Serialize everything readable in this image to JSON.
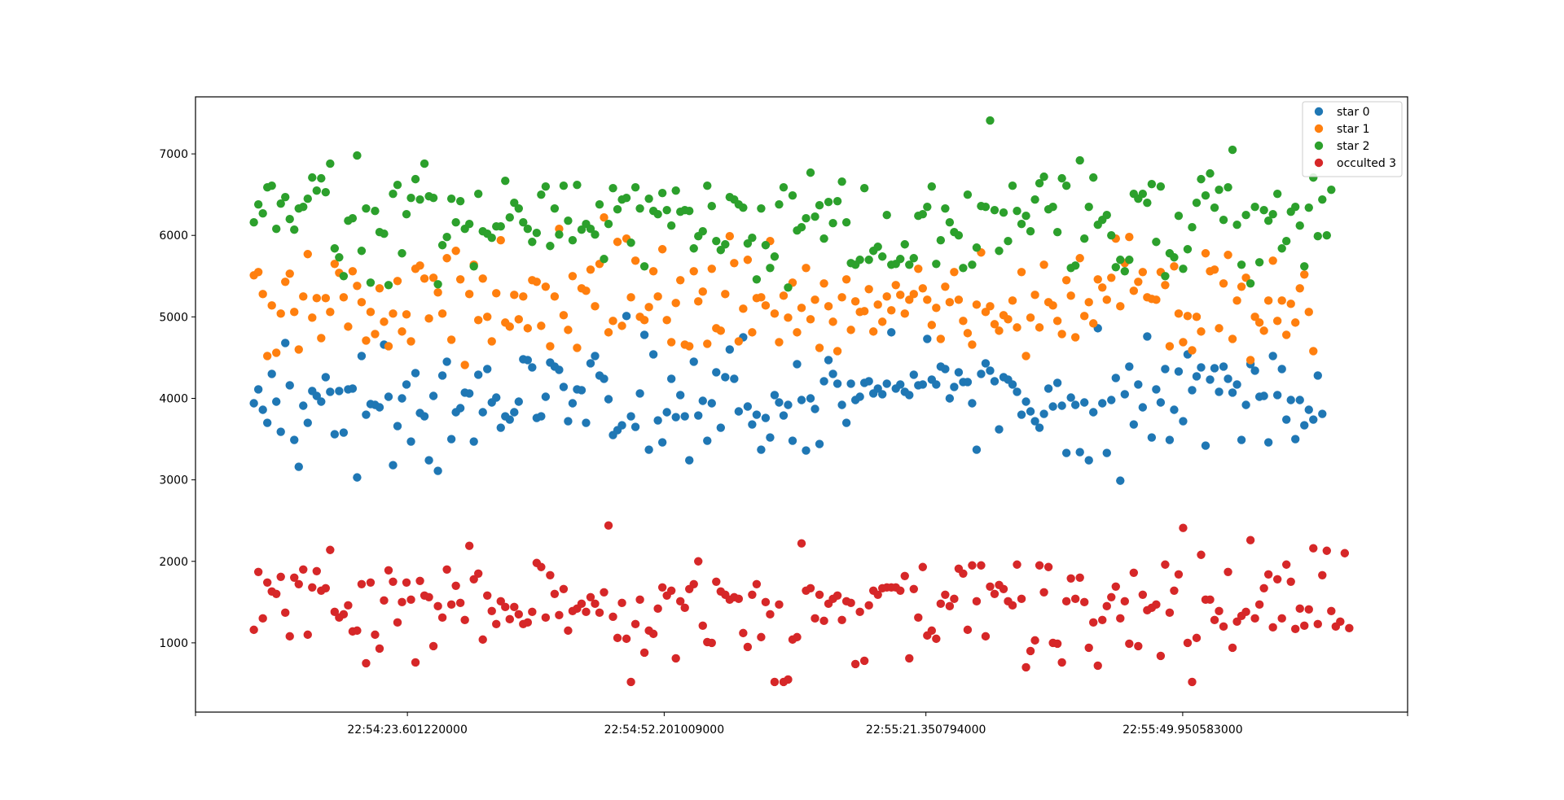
{
  "chart_data": {
    "type": "scatter",
    "title": "",
    "xlabel": "",
    "ylabel": "",
    "ylim": [
      150,
      7700
    ],
    "xlim": [
      "22:54:00.000000000",
      "22:56:15.000000000"
    ],
    "x_ticks": [
      {
        "value": "22:54:23.601220000",
        "label": "22:54:23.601220000"
      },
      {
        "value": "22:54:52.201009000",
        "label": "22:54:52.201009000"
      },
      {
        "value": "22:55:21.350794000",
        "label": "22:55:21.350794000"
      },
      {
        "value": "22:55:49.950583000",
        "label": "22:55:49.950583000"
      }
    ],
    "y_ticks": [
      1000,
      2000,
      3000,
      4000,
      5000,
      6000,
      7000
    ],
    "grid": false,
    "legend_position": "top-right",
    "x_start": "22:54:06.500000000",
    "x_step_seconds": 0.5,
    "series": [
      {
        "name": "star 0",
        "color": "#1f77b4",
        "y": [
          3940,
          4110,
          3860,
          3700,
          4300,
          3960,
          3590,
          4680,
          4160,
          3490,
          3160,
          3910,
          3700,
          4090,
          4030,
          3960,
          4260,
          4080,
          3560,
          4090,
          3580,
          4110,
          4120,
          3030,
          4520,
          3800,
          3930,
          3920,
          3890,
          4660,
          4020,
          3180,
          3660,
          4000,
          4170,
          3470,
          4310,
          3820,
          3780,
          3240,
          4030,
          3110,
          4280,
          4450,
          3500,
          3830,
          3880,
          4070,
          4060,
          3470,
          4290,
          3830,
          4360,
          3950,
          4010,
          3640,
          3780,
          3740,
          3830,
          3960,
          4480,
          4470,
          4380,
          3760,
          3780,
          4020,
          4440,
          4390,
          4350,
          4140,
          3720,
          3940,
          4110,
          4100,
          3700,
          4430,
          4520,
          4280,
          4240,
          3990,
          3550,
          3610,
          3670,
          5010,
          3780,
          3650,
          4060,
          4780,
          3370,
          4540,
          3730,
          3460,
          3830,
          4240,
          3770,
          4040,
          3780,
          3240,
          4450,
          3790,
          3970,
          3480,
          3940,
          4320,
          3640,
          4260,
          4600,
          4240,
          3840,
          4750,
          3900,
          3680,
          3800,
          3370,
          3760,
          3520,
          4040,
          3950,
          3790,
          3920,
          3480,
          4420,
          3980,
          3360,
          4000,
          3870,
          3440,
          4210,
          4470,
          4300,
          4180,
          3920,
          3700,
          4180,
          3980,
          4020,
          4190,
          4210,
          4060,
          4120,
          4050,
          4180,
          4810,
          4120,
          4170,
          4080,
          4040,
          4290,
          4160,
          4170,
          4730,
          4230,
          4170,
          4390,
          4360,
          4000,
          4140,
          4320,
          4200,
          4200,
          3940,
          3370,
          4300,
          4430,
          4340,
          4210,
          3620,
          4260,
          4230,
          4170,
          4080,
          3800,
          3960,
          3840,
          3720,
          3640,
          3810,
          4120,
          3900,
          4190,
          3910,
          3330,
          4010,
          3920,
          3340,
          3950,
          3240,
          3830,
          4860,
          3940,
          3330,
          3980,
          4250,
          2990,
          4050,
          4390,
          3680,
          4170,
          3890,
          4760,
          3520,
          4110,
          3950,
          4360,
          3490,
          3860,
          4330,
          3720,
          4540,
          4100,
          4270,
          4380,
          3420,
          4230,
          4370,
          4080,
          4390,
          4240,
          4070,
          4170,
          3490,
          3920,
          4420,
          4340,
          4020,
          4030,
          3460,
          4520,
          4040,
          4360,
          3740,
          3980,
          3500,
          3980,
          3670,
          3860,
          3740,
          4280,
          3810
        ]
      },
      {
        "name": "star 1",
        "color": "#ff7f0e",
        "y": [
          5510,
          5550,
          5280,
          4520,
          5140,
          4560,
          5040,
          5430,
          5530,
          5060,
          4600,
          5250,
          5770,
          4990,
          5230,
          4740,
          5230,
          5060,
          5650,
          5540,
          5240,
          4880,
          5560,
          5380,
          5180,
          4710,
          5060,
          4790,
          5350,
          4940,
          4640,
          5040,
          5440,
          4820,
          5030,
          4700,
          5590,
          5630,
          5470,
          4980,
          5480,
          5300,
          5040,
          5720,
          4720,
          5810,
          5460,
          4410,
          5280,
          5640,
          4960,
          5470,
          5000,
          4700,
          5290,
          5940,
          4930,
          4880,
          5270,
          4970,
          5250,
          4860,
          5450,
          5430,
          4890,
          5370,
          4640,
          5250,
          6080,
          5020,
          4840,
          5500,
          4620,
          5350,
          5320,
          5580,
          5130,
          5650,
          6220,
          4810,
          4950,
          5920,
          4890,
          5960,
          5240,
          5690,
          5000,
          4960,
          5120,
          5560,
          5250,
          5830,
          4960,
          4690,
          5170,
          5450,
          4660,
          4640,
          5560,
          5190,
          5310,
          4670,
          5590,
          4860,
          4830,
          5280,
          5990,
          5660,
          4700,
          5100,
          5700,
          4810,
          5230,
          5240,
          5140,
          5930,
          5040,
          4690,
          5260,
          4990,
          5420,
          4810,
          5110,
          5600,
          4970,
          5210,
          4620,
          5410,
          5130,
          4940,
          4580,
          5240,
          5460,
          4840,
          5190,
          5060,
          5070,
          5340,
          4820,
          5150,
          4940,
          5250,
          5080,
          5390,
          5270,
          5040,
          5210,
          5280,
          5590,
          5350,
          5210,
          4900,
          5110,
          4730,
          5370,
          5180,
          5550,
          5210,
          4950,
          4800,
          4660,
          5150,
          5790,
          5060,
          5130,
          4910,
          4830,
          5020,
          4970,
          5200,
          4870,
          5550,
          4520,
          4990,
          5270,
          4870,
          5640,
          5180,
          5140,
          4950,
          4790,
          5450,
          5260,
          4750,
          5720,
          5010,
          5180,
          4920,
          5460,
          5360,
          5210,
          5480,
          5960,
          5130,
          5660,
          5980,
          5320,
          5430,
          5550,
          5240,
          5220,
          5210,
          5550,
          5390,
          4640,
          5620,
          5040,
          4690,
          5010,
          4590,
          5000,
          4820,
          5780,
          5560,
          5580,
          4860,
          5410,
          5760,
          4730,
          5200,
          5370,
          5480,
          4470,
          5000,
          4930,
          4830,
          5200,
          5690,
          4950,
          5200,
          4780,
          5160,
          4930,
          5350,
          5520,
          5060,
          4580
        ]
      },
      {
        "name": "star 2",
        "color": "#2ca02c",
        "y": [
          6160,
          6380,
          6270,
          6590,
          6610,
          6080,
          6390,
          6470,
          6200,
          6070,
          6330,
          6350,
          6450,
          6710,
          6550,
          6700,
          6530,
          6880,
          5840,
          5730,
          5500,
          6180,
          6210,
          6980,
          5810,
          6330,
          5420,
          6300,
          6040,
          6020,
          5390,
          6510,
          6620,
          5780,
          6260,
          6460,
          6690,
          6440,
          6880,
          6480,
          6460,
          5400,
          5880,
          5980,
          6450,
          6160,
          6420,
          6080,
          6140,
          5620,
          6510,
          6050,
          6020,
          5970,
          6110,
          6110,
          6670,
          6220,
          6400,
          6330,
          6160,
          6080,
          5920,
          6030,
          6500,
          6600,
          5870,
          6330,
          6010,
          6610,
          6180,
          5940,
          6620,
          6070,
          6140,
          6080,
          6010,
          6380,
          5710,
          6140,
          6580,
          6320,
          6440,
          6460,
          5910,
          6590,
          6330,
          5620,
          6450,
          6300,
          6260,
          6520,
          6310,
          6120,
          6550,
          6290,
          6310,
          6300,
          5840,
          5990,
          6050,
          6610,
          6360,
          5930,
          5820,
          5890,
          6470,
          6440,
          6380,
          6340,
          5900,
          5970,
          5460,
          6330,
          5880,
          5600,
          5740,
          6380,
          6590,
          5360,
          6490,
          6060,
          6100,
          6210,
          6770,
          6230,
          6370,
          5960,
          6410,
          6150,
          6420,
          6660,
          6160,
          5660,
          5640,
          5700,
          6580,
          5700,
          5810,
          5860,
          5740,
          6250,
          5640,
          5650,
          5710,
          5890,
          5640,
          5720,
          6240,
          6260,
          6350,
          6600,
          5650,
          5940,
          6330,
          6160,
          6040,
          6000,
          5600,
          6500,
          5640,
          5850,
          6360,
          6350,
          7410,
          6310,
          5810,
          6280,
          5930,
          6610,
          6300,
          6140,
          6240,
          6050,
          6440,
          6640,
          6720,
          6320,
          6350,
          6040,
          6700,
          6610,
          5600,
          5630,
          6920,
          5960,
          6350,
          6710,
          6130,
          6190,
          6250,
          6000,
          5610,
          5700,
          5560,
          5700,
          6510,
          6450,
          6510,
          6400,
          6630,
          5920,
          6600,
          5500,
          5780,
          5730,
          6240,
          5590,
          5830,
          6100,
          6400,
          6690,
          6490,
          6760,
          6340,
          6560,
          6190,
          6590,
          7050,
          6130,
          5640,
          6250,
          5410,
          6350,
          5670,
          6310,
          6180,
          6260,
          6510,
          5840,
          5930,
          6290,
          6350,
          6120,
          5620,
          6340,
          6710,
          5990,
          6440,
          6000,
          6560
        ]
      },
      {
        "name": "occulted 3",
        "color": "#d62728",
        "y": [
          1160,
          1870,
          1300,
          1740,
          1630,
          1600,
          1810,
          1370,
          1080,
          1800,
          1720,
          1900,
          1100,
          1680,
          1880,
          1640,
          1670,
          2140,
          1380,
          1310,
          1350,
          1460,
          1140,
          1150,
          1720,
          750,
          1740,
          1100,
          930,
          1520,
          1890,
          1750,
          1250,
          1500,
          1740,
          1530,
          760,
          1760,
          1580,
          1560,
          960,
          1450,
          1310,
          1900,
          1470,
          1700,
          1490,
          1280,
          2190,
          1780,
          1850,
          1040,
          1580,
          1390,
          1230,
          1510,
          1440,
          1290,
          1440,
          1350,
          1230,
          1250,
          1380,
          1980,
          1930,
          1310,
          1830,
          1600,
          1340,
          1660,
          1150,
          1390,
          1420,
          1480,
          1380,
          1560,
          1480,
          1370,
          1620,
          2440,
          1320,
          1060,
          1490,
          1050,
          520,
          1230,
          1530,
          880,
          1150,
          1110,
          1420,
          1680,
          1580,
          1640,
          810,
          1510,
          1430,
          1660,
          1720,
          2000,
          1210,
          1010,
          1000,
          1750,
          1630,
          1590,
          1530,
          1560,
          1540,
          1120,
          950,
          1590,
          1720,
          1070,
          1500,
          1350,
          520,
          1470,
          520,
          550,
          1040,
          1070,
          2220,
          1640,
          1670,
          1300,
          1590,
          1270,
          1480,
          1540,
          1580,
          1280,
          1510,
          1490,
          740,
          1380,
          780,
          1460,
          1640,
          1590,
          1670,
          1680,
          1680,
          1680,
          1640,
          1820,
          810,
          1660,
          1310,
          1930,
          1090,
          1150,
          1050,
          1480,
          1590,
          1450,
          1540,
          1910,
          1850,
          1160,
          1950,
          1510,
          1950,
          1080,
          1690,
          1600,
          1710,
          1660,
          1510,
          1460,
          1960,
          1540,
          700,
          900,
          1030,
          1950,
          1620,
          1930,
          1000,
          990,
          760,
          1510,
          1790,
          1540,
          1800,
          1500,
          940,
          1250,
          720,
          1280,
          1450,
          1560,
          1690,
          1300,
          1510,
          990,
          1860,
          960,
          1590,
          1400,
          1430,
          1470,
          840,
          1960,
          1370,
          1640,
          1840,
          2410,
          1000,
          520,
          1060,
          2080,
          1530,
          1530,
          1280,
          1390,
          1200,
          1870,
          940,
          1260,
          1330,
          1380,
          2260,
          1300,
          1470,
          1670,
          1840,
          1190,
          1780,
          1300,
          1960,
          1750,
          1170,
          1420,
          1210,
          1410,
          2160,
          1230,
          1830,
          2130,
          1390,
          1200,
          1260,
          2100,
          1180
        ]
      }
    ]
  }
}
